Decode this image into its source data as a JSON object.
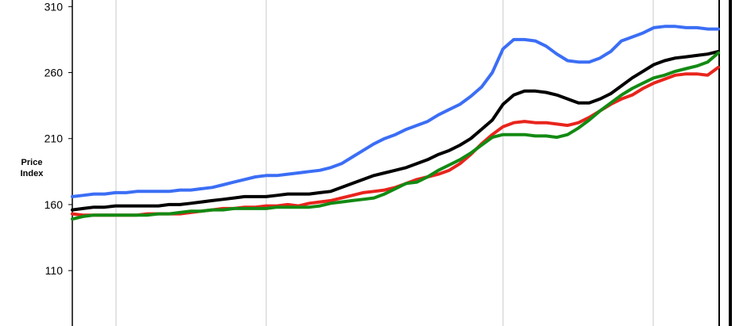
{
  "chart_data": {
    "type": "line",
    "title": "",
    "xlabel": "",
    "ylabel": [
      "Price",
      "Index"
    ],
    "ylim": [
      68,
      315
    ],
    "y_ticks": [
      110,
      160,
      210,
      260,
      310
    ],
    "y_tick_labels": [
      "110",
      "160",
      "210",
      "260",
      "310"
    ],
    "x_count": 61,
    "grid": "vertical lines",
    "legend": "none",
    "series": [
      {
        "color": "#3b6ef5",
        "values": [
          166,
          167,
          168,
          168,
          169,
          169,
          170,
          170,
          170,
          170,
          171,
          171,
          172,
          173,
          175,
          177,
          179,
          181,
          182,
          182,
          183,
          184,
          185,
          186,
          188,
          191,
          196,
          201,
          206,
          210,
          213,
          217,
          220,
          223,
          228,
          232,
          236,
          242,
          249,
          260,
          278,
          285,
          285,
          284,
          280,
          274,
          269,
          268,
          268,
          271,
          276,
          284,
          287,
          290,
          294,
          295,
          295,
          294,
          294,
          293,
          293
        ]
      },
      {
        "color": "#000000",
        "values": [
          156,
          157,
          158,
          158,
          159,
          159,
          159,
          159,
          159,
          160,
          160,
          161,
          162,
          163,
          164,
          165,
          166,
          166,
          166,
          167,
          168,
          168,
          168,
          169,
          170,
          173,
          176,
          179,
          182,
          184,
          186,
          188,
          191,
          194,
          198,
          201,
          205,
          210,
          217,
          224,
          236,
          243,
          246,
          246,
          245,
          243,
          240,
          237,
          237,
          240,
          244,
          250,
          256,
          261,
          266,
          269,
          271,
          272,
          273,
          274,
          276
        ]
      },
      {
        "color": "#e8241c",
        "values": [
          153,
          152,
          152,
          152,
          152,
          152,
          152,
          153,
          153,
          153,
          153,
          154,
          155,
          156,
          157,
          157,
          158,
          158,
          159,
          159,
          160,
          159,
          161,
          162,
          163,
          165,
          167,
          169,
          170,
          171,
          173,
          176,
          179,
          181,
          183,
          186,
          191,
          198,
          206,
          213,
          219,
          222,
          223,
          222,
          222,
          221,
          220,
          222,
          226,
          231,
          236,
          240,
          243,
          248,
          252,
          255,
          258,
          259,
          259,
          258,
          264
        ]
      },
      {
        "color": "#138a13",
        "values": [
          149,
          151,
          152,
          152,
          152,
          152,
          152,
          152,
          153,
          153,
          154,
          155,
          155,
          156,
          156,
          157,
          157,
          157,
          157,
          158,
          158,
          158,
          158,
          159,
          161,
          162,
          163,
          164,
          165,
          168,
          172,
          176,
          177,
          181,
          186,
          190,
          194,
          199,
          205,
          211,
          213,
          213,
          213,
          212,
          212,
          211,
          213,
          218,
          224,
          231,
          237,
          243,
          248,
          252,
          256,
          258,
          261,
          263,
          265,
          268,
          275
        ]
      }
    ]
  }
}
